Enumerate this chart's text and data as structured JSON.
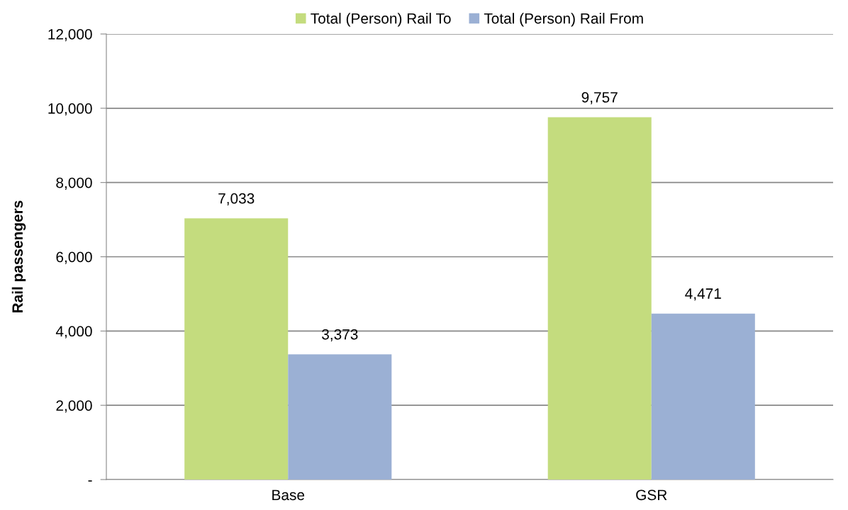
{
  "chart_data": {
    "type": "bar",
    "ylabel": "Rail passengers",
    "categories": [
      "Base",
      "GSR"
    ],
    "series": [
      {
        "name": "Total (Person) Rail To",
        "color": "#c4dc7e",
        "values": [
          7033,
          9757
        ],
        "value_labels": [
          "7,033",
          "9,757"
        ]
      },
      {
        "name": "Total (Person) Rail From",
        "color": "#9bb0d4",
        "values": [
          3373,
          4471
        ],
        "value_labels": [
          "3,373",
          "4,471"
        ]
      }
    ],
    "ylim": [
      0,
      12000
    ],
    "yticks": [
      {
        "value": 0,
        "label": "-"
      },
      {
        "value": 2000,
        "label": "2,000"
      },
      {
        "value": 4000,
        "label": "4,000"
      },
      {
        "value": 6000,
        "label": "6,000"
      },
      {
        "value": 8000,
        "label": "8,000"
      },
      {
        "value": 10000,
        "label": "10,000"
      },
      {
        "value": 12000,
        "label": "12,000"
      }
    ],
    "grid": "y",
    "legend": "top"
  }
}
